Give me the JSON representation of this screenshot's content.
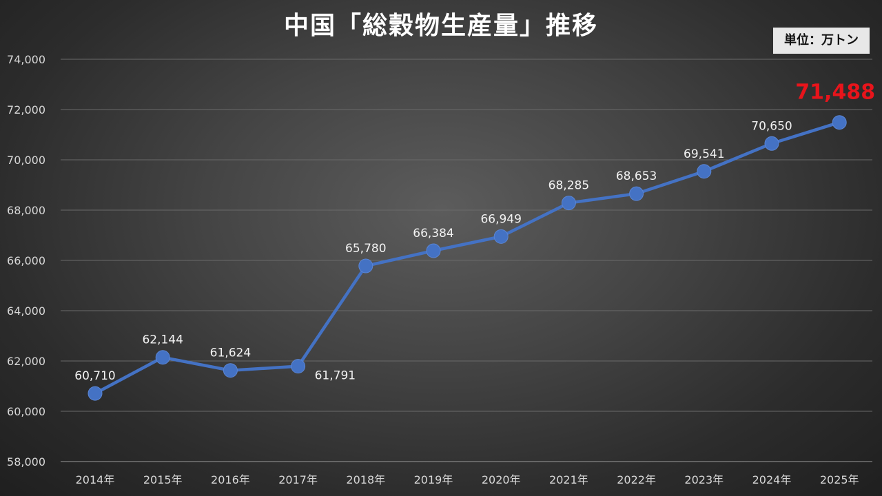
{
  "title": "中国「総穀物生産量」推移",
  "unit_label": "単位：万トン",
  "colors": {
    "line": "#4472c4",
    "highlight_label": "#e8141b",
    "gridline": "#6a6a6a",
    "text": "#ffffff"
  },
  "chart_data": {
    "type": "line",
    "title": "中国「総穀物生産量」推移",
    "xlabel": "",
    "ylabel": "",
    "categories": [
      "2014年",
      "2015年",
      "2016年",
      "2017年",
      "2018年",
      "2019年",
      "2020年",
      "2021年",
      "2022年",
      "2023年",
      "2024年",
      "2025年"
    ],
    "series": [
      {
        "values": [
          60710,
          62144,
          61624,
          61791,
          65780,
          66384,
          66949,
          68285,
          68653,
          69541,
          70650,
          71488
        ]
      }
    ],
    "data_labels": [
      "60,710",
      "62,144",
      "61,624",
      "61,791",
      "65,780",
      "66,384",
      "66,949",
      "68,285",
      "68,653",
      "69,541",
      "70,650",
      "71,488"
    ],
    "ylim": [
      58000,
      74000
    ],
    "yticks": [
      58000,
      60000,
      62000,
      64000,
      66000,
      68000,
      70000,
      72000,
      74000
    ],
    "ytick_labels": [
      "58,000",
      "60,000",
      "62,000",
      "64,000",
      "66,000",
      "68,000",
      "70,000",
      "72,000",
      "74,000"
    ],
    "grid": true,
    "legend": "none",
    "highlight_last_label": true
  }
}
